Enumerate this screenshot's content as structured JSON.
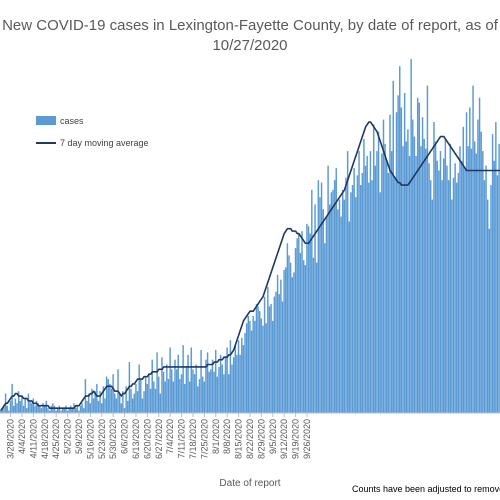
{
  "chart_data": {
    "type": "bar",
    "title": "New COVID-19 cases in Lexington-Fayette County, by date of report, as of 10/27/2020",
    "title_lines": [
      "New COVID-19 cases in Lexington-Fayette County, by date of report, as of",
      "10/27/2020"
    ],
    "xlabel": "Date of report",
    "ylabel": "",
    "footnote": "Counts have been adjusted to remove d",
    "start_date": "3/22/2020",
    "tick_labels": [
      "3/28/2020",
      "4/4/2020",
      "4/11/2020",
      "4/18/2020",
      "4/25/2020",
      "5/2/2020",
      "5/9/2020",
      "5/16/2020",
      "5/23/2020",
      "5/30/2020",
      "6/6/2020",
      "6/13/2020",
      "6/20/2020",
      "6/27/2020",
      "7/4/2020",
      "7/11/2020",
      "7/18/2020",
      "7/25/2020",
      "8/1/2020",
      "8/8/2020",
      "8/15/2020",
      "8/22/2020",
      "8/29/2020",
      "9/5/2020",
      "9/12/2020",
      "9/19/2020",
      "9/26/2020"
    ],
    "legend": [
      "cases",
      "7 day moving average"
    ],
    "legend_position": "top-left",
    "grid": false,
    "colors": {
      "bars": "#5B9BD5",
      "line": "#1F3864",
      "text": "#595959"
    },
    "series": [
      {
        "name": "cases",
        "type": "bar",
        "values": [
          1,
          2,
          3,
          8,
          3,
          1,
          5,
          12,
          3,
          6,
          4,
          9,
          5,
          7,
          3,
          6,
          2,
          8,
          5,
          4,
          6,
          3,
          5,
          4,
          3,
          2,
          4,
          3,
          5,
          2,
          1,
          3,
          4,
          3,
          1,
          2,
          3,
          1,
          2,
          2,
          3,
          1,
          2,
          3,
          2,
          4,
          2,
          3,
          1,
          3,
          4,
          2,
          14,
          5,
          8,
          4,
          10,
          6,
          9,
          12,
          5,
          9,
          4,
          11,
          6,
          15,
          14,
          12,
          10,
          16,
          8,
          6,
          18,
          8,
          4,
          9,
          2,
          11,
          5,
          21,
          10,
          6,
          8,
          12,
          9,
          20,
          14,
          6,
          9,
          15,
          12,
          16,
          10,
          22,
          13,
          10,
          25,
          15,
          8,
          23,
          17,
          13,
          20,
          14,
          27,
          18,
          13,
          22,
          18,
          24,
          14,
          16,
          28,
          12,
          19,
          24,
          13,
          27,
          18,
          16,
          20,
          11,
          14,
          26,
          15,
          13,
          22,
          25,
          17,
          18,
          22,
          17,
          26,
          15,
          19,
          24,
          20,
          16,
          23,
          27,
          16,
          30,
          20,
          23,
          28,
          24,
          30,
          24,
          31,
          28,
          33,
          37,
          40,
          38,
          34,
          40,
          38,
          45,
          44,
          42,
          39,
          36,
          48,
          37,
          52,
          44,
          45,
          38,
          48,
          50,
          57,
          49,
          55,
          46,
          59,
          60,
          70,
          65,
          62,
          56,
          58,
          68,
          72,
          74,
          66,
          75,
          63,
          61,
          78,
          77,
          74,
          92,
          64,
          86,
          62,
          96,
          89,
          95,
          84,
          70,
          81,
          102,
          86,
          91,
          92,
          96,
          101,
          84,
          88,
          81,
          92,
          88,
          97,
          108,
          79,
          91,
          94,
          101,
          89,
          98,
          108,
          94,
          99,
          113,
          102,
          106,
          95,
          108,
          96,
          119,
          102,
          108,
          116,
          91,
          107,
          121,
          111,
          104,
          99,
          123,
          108,
          137,
          97,
          124,
          131,
          143,
          126,
          110,
          132,
          112,
          117,
          106,
          146,
          121,
          114,
          106,
          130,
          128,
          110,
          122,
          113,
          109,
          135,
          103,
          96,
          88,
          120,
          112,
          104,
          100,
          108,
          96,
          105,
          113,
          102,
          96,
          111,
          88,
          97,
          103,
          95,
          99,
          110,
          104,
          118,
          101,
          124,
          110,
          126,
          109,
          135,
          112,
          107,
          121,
          130,
          116,
          108,
          96,
          102,
          88,
          76,
          94,
          115,
          104,
          120,
          98,
          111
        ]
      },
      {
        "name": "7 day moving average",
        "type": "line",
        "values": [
          1,
          2,
          3,
          4,
          4,
          5,
          6,
          7,
          7,
          8,
          8,
          7,
          7,
          7,
          6,
          6,
          6,
          5,
          5,
          5,
          4,
          4,
          4,
          3,
          3,
          3,
          3,
          3,
          3,
          3,
          2,
          2,
          2,
          2,
          2,
          2,
          2,
          2,
          2,
          2,
          2,
          2,
          2,
          2,
          2,
          2,
          3,
          3,
          3,
          4,
          5,
          6,
          7,
          7,
          7,
          8,
          8,
          9,
          8,
          7,
          7,
          7,
          8,
          9,
          10,
          11,
          11,
          11,
          11,
          10,
          9,
          9,
          9,
          8,
          7,
          8,
          8,
          9,
          10,
          11,
          11,
          12,
          12,
          13,
          14,
          14,
          14,
          14,
          15,
          15,
          15,
          16,
          16,
          17,
          17,
          17,
          17,
          18,
          18,
          18,
          19,
          19,
          19,
          19,
          19,
          19,
          19,
          19,
          19,
          19,
          19,
          19,
          19,
          19,
          19,
          19,
          19,
          19,
          19,
          19,
          19,
          19,
          19,
          19,
          19,
          19,
          19,
          20,
          20,
          20,
          20,
          21,
          21,
          21,
          22,
          22,
          22,
          23,
          23,
          23,
          24,
          24,
          25,
          26,
          28,
          30,
          32,
          34,
          36,
          38,
          39,
          40,
          41,
          42,
          42,
          42,
          43,
          44,
          45,
          46,
          47,
          48,
          50,
          52,
          54,
          56,
          58,
          60,
          62,
          64,
          66,
          68,
          70,
          72,
          74,
          75,
          76,
          76,
          76,
          75,
          75,
          75,
          74,
          74,
          73,
          72,
          71,
          70,
          70,
          70,
          71,
          72,
          73,
          74,
          75,
          76,
          77,
          78,
          79,
          80,
          81,
          82,
          83,
          84,
          85,
          86,
          87,
          88,
          89,
          90,
          91,
          92,
          94,
          96,
          98,
          100,
          102,
          104,
          106,
          108,
          110,
          112,
          114,
          116,
          118,
          119,
          120,
          120,
          119,
          118,
          117,
          116,
          114,
          112,
          110,
          108,
          106,
          104,
          102,
          100,
          99,
          98,
          97,
          96,
          95,
          95,
          94,
          94,
          94,
          94,
          94,
          95,
          96,
          97,
          98,
          99,
          100,
          101,
          102,
          103,
          104,
          105,
          106,
          107,
          108,
          109,
          110,
          111,
          112,
          113,
          114,
          114,
          114,
          113,
          112,
          111,
          110,
          109,
          108,
          107,
          106,
          105,
          104,
          103,
          102,
          101,
          100,
          100,
          100,
          100,
          100,
          100,
          100,
          100,
          100,
          100,
          100,
          100,
          100,
          100,
          100,
          100,
          100,
          100,
          100,
          100,
          100,
          100,
          100,
          100,
          100,
          100,
          100,
          100,
          100,
          100,
          100,
          100,
          100,
          100,
          100,
          100
        ]
      }
    ]
  }
}
